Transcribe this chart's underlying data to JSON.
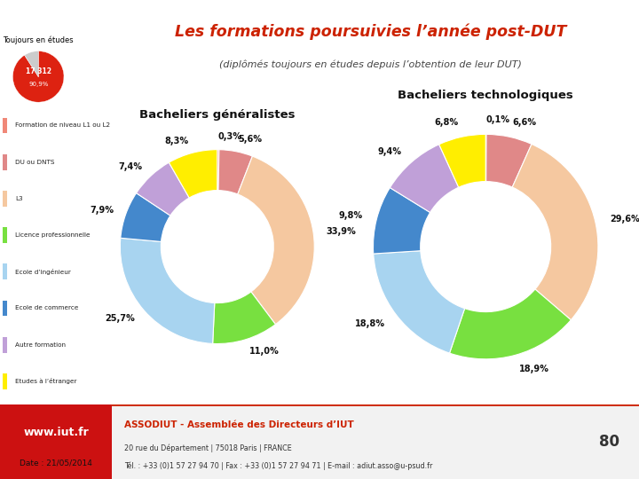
{
  "title": "Les formations poursuivies l’année post-DUT",
  "subtitle": "(diplômés toujours en études depuis l’obtention de leur DUT)",
  "left_title": "Bacheliers généralistes",
  "right_title": "Bacheliers technologiques",
  "categories": [
    "Formation de niveau L1 ou L2",
    "DU ou DNTS",
    "L3",
    "Licence professionnelle",
    "Ecole d’ingénieur",
    "Ecole de commerce",
    "Autre formation",
    "Etudes à l’étranger"
  ],
  "slice_colors": [
    "#f08878",
    "#e08888",
    "#f5c8a0",
    "#78e040",
    "#a8d4f0",
    "#4488cc",
    "#c0a0d8",
    "#ffee00"
  ],
  "left_values": [
    0.3,
    5.6,
    33.9,
    11.0,
    25.7,
    7.9,
    7.4,
    8.3
  ],
  "left_labels": [
    "0,3%",
    "5,6%",
    "33,9%",
    "11,0%",
    "25,7%",
    "7,9%",
    "7,4%",
    "8,3%"
  ],
  "right_values": [
    0.1,
    6.6,
    29.6,
    18.9,
    18.8,
    9.8,
    9.4,
    6.8
  ],
  "right_labels": [
    "0,1%",
    "6,6%",
    "29,6%",
    "18,9%",
    "18,8%",
    "9,8%",
    "9,4%",
    "6,8%"
  ],
  "small_pie_values": [
    90.9,
    9.1
  ],
  "small_pie_colors": [
    "#dd2211",
    "#cccccc"
  ],
  "small_pie_label": "17 312",
  "small_pie_pct": "90,9%",
  "toujours_label": "Toujours en études",
  "footer_left_bg": "#cc1111",
  "footer_left_text": "www.iut.fr",
  "footer_org": "ASSODIUT - Assemblée des Directeurs d’IUT",
  "footer_address": "20 rue du Département | 75018 Paris | FRANCE",
  "footer_tel": "Tél. : +33 (0)1 57 27 94 70 | Fax : +33 (0)1 57 27 94 71 | E-mail : adiut.asso@u-psud.fr",
  "footer_num": "80",
  "date_label": "Date : 21/05/2014",
  "bg_color": "#ffffff",
  "title_color": "#cc2200",
  "legend_label_color": "#222222"
}
